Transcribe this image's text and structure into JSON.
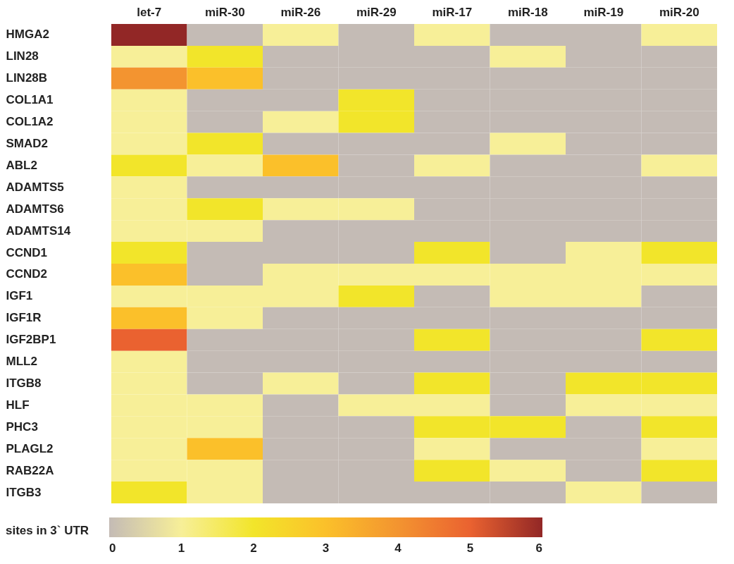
{
  "chart_data": {
    "type": "heatmap",
    "categories": [
      "let-7",
      "miR-30",
      "miR-26",
      "miR-29",
      "miR-17",
      "miR-18",
      "miR-19",
      "miR-20"
    ],
    "y_categories": [
      "HMGA2",
      "LIN28",
      "LIN28B",
      "COL1A1",
      "COL1A2",
      "SMAD2",
      "ABL2",
      "ADAMTS5",
      "ADAMTS6",
      "ADAMTS14",
      "CCND1",
      "CCND2",
      "IGF1",
      "IGF1R",
      "IGF2BP1",
      "MLL2",
      "ITGB8",
      "HLF",
      "PHC3",
      "PLAGL2",
      "RAB22A",
      "ITGB3"
    ],
    "cells": [
      [
        6,
        0,
        1,
        0,
        1,
        0,
        0,
        1
      ],
      [
        1,
        2,
        0,
        0,
        0,
        1,
        0,
        0
      ],
      [
        4,
        3,
        0,
        0,
        0,
        0,
        0,
        0
      ],
      [
        1,
        0,
        0,
        2,
        0,
        0,
        0,
        0
      ],
      [
        1,
        0,
        1,
        2,
        0,
        0,
        0,
        0
      ],
      [
        1,
        2,
        0,
        0,
        0,
        1,
        0,
        0
      ],
      [
        2,
        1,
        3,
        0,
        1,
        0,
        0,
        1
      ],
      [
        1,
        0,
        0,
        0,
        0,
        0,
        0,
        0
      ],
      [
        1,
        2,
        1,
        1,
        0,
        0,
        0,
        0
      ],
      [
        1,
        1,
        0,
        0,
        0,
        0,
        0,
        0
      ],
      [
        2,
        0,
        0,
        0,
        2,
        0,
        1,
        2
      ],
      [
        3,
        0,
        1,
        1,
        1,
        1,
        1,
        1
      ],
      [
        1,
        1,
        1,
        2,
        0,
        1,
        1,
        0
      ],
      [
        3,
        1,
        0,
        0,
        0,
        0,
        0,
        0
      ],
      [
        5,
        0,
        0,
        0,
        2,
        0,
        0,
        2
      ],
      [
        1,
        0,
        0,
        0,
        0,
        0,
        0,
        0
      ],
      [
        1,
        0,
        1,
        0,
        2,
        0,
        2,
        2
      ],
      [
        1,
        1,
        0,
        1,
        1,
        0,
        1,
        1
      ],
      [
        1,
        1,
        0,
        0,
        2,
        2,
        0,
        2
      ],
      [
        1,
        3,
        0,
        0,
        1,
        0,
        0,
        1
      ],
      [
        1,
        1,
        0,
        0,
        2,
        1,
        0,
        2
      ],
      [
        2,
        1,
        0,
        0,
        0,
        0,
        1,
        0
      ]
    ],
    "clabel": "sites in 3` UTR",
    "clim": [
      0,
      6
    ],
    "cticks": [
      0,
      1,
      2,
      3,
      4,
      5,
      6
    ],
    "colors": [
      "#c4bbb5",
      "#f7ef98",
      "#f2e52a",
      "#fbc02a",
      "#f39430",
      "#ea6230",
      "#922726"
    ]
  }
}
